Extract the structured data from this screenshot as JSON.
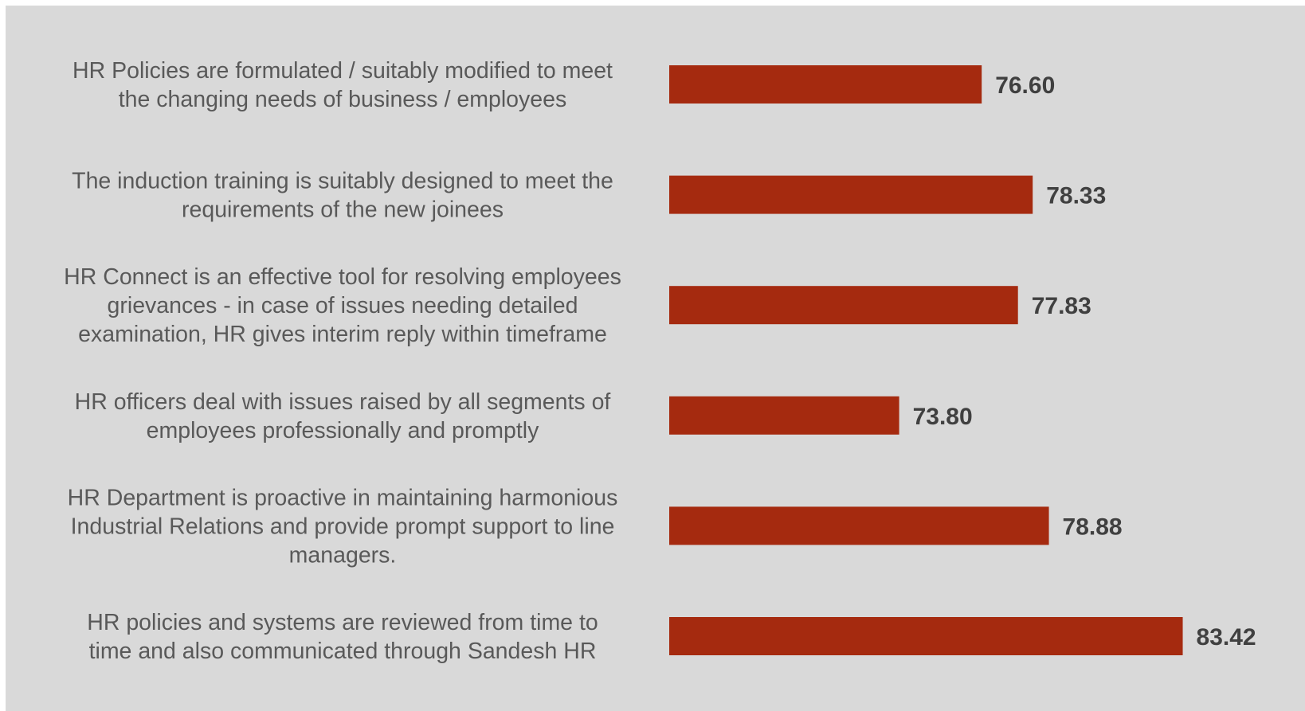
{
  "chart_data": {
    "type": "bar",
    "orientation": "horizontal",
    "categories": [
      [
        "HR Policies are formulated / suitably modified to meet",
        "the changing needs of business / employees"
      ],
      [
        "The induction training is suitably designed to meet the",
        "requirements of the new joinees"
      ],
      [
        "HR Connect is an effective tool for resolving employees",
        "grievances - in case of issues needing detailed",
        "examination, HR gives interim reply within timeframe"
      ],
      [
        "HR officers deal with issues raised by all segments of",
        "employees professionally and promptly"
      ],
      [
        "HR Department is proactive in maintaining harmonious",
        "Industrial Relations and provide prompt support to line",
        "managers."
      ],
      [
        "HR policies and systems are reviewed from time to",
        "time and also communicated through Sandesh HR"
      ]
    ],
    "values": [
      76.6,
      78.33,
      77.83,
      73.8,
      78.88,
      83.42
    ],
    "value_labels": [
      "76.60",
      "78.33",
      "77.83",
      "73.80",
      "78.88",
      "83.42"
    ],
    "bar_color": "#a52a0f",
    "background_color": "#d9d9d9",
    "xlim": [
      66,
      84
    ],
    "axis_visible": false,
    "grid": false,
    "legend": "none",
    "data_labels": "outside-end"
  }
}
